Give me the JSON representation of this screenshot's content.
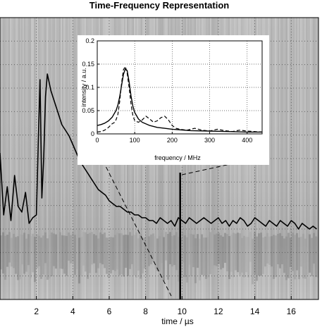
{
  "chart_data": [
    {
      "type": "heatmap",
      "title": "Time-Frequency Representation",
      "xlabel": "time / µs",
      "ylabel": "",
      "xlim": [
        0,
        17.5
      ],
      "x_ticks": [
        "2",
        "4",
        "6",
        "8",
        "10",
        "12",
        "14",
        "16"
      ],
      "grid": true,
      "background": "grayscale time-frequency intensity map",
      "series": [
        {
          "type": "line",
          "x": [
            0.0,
            0.2,
            0.4,
            0.6,
            0.8,
            1.0,
            1.2,
            1.4,
            1.6,
            1.8,
            2.0,
            2.1,
            2.2,
            2.3,
            2.4,
            2.5,
            2.6,
            2.8,
            3.0,
            3.2,
            3.4,
            3.6,
            3.8,
            4.0,
            4.2,
            4.4,
            4.6,
            4.8,
            5.0,
            5.2,
            5.4,
            5.6,
            5.8,
            6.0,
            6.2,
            6.4,
            6.6,
            6.8,
            7.0,
            7.2,
            7.4,
            7.6,
            7.8,
            8.0,
            8.2,
            8.4,
            8.6,
            8.8,
            9.0,
            9.2,
            9.4,
            9.6,
            9.8,
            10.0,
            10.2,
            10.4,
            10.6,
            10.8,
            11.0,
            11.2,
            11.4,
            11.6,
            11.8,
            12.0,
            12.2,
            12.4,
            12.6,
            12.8,
            13.0,
            13.2,
            13.4,
            13.6,
            13.8,
            14.0,
            14.2,
            14.4,
            14.6,
            14.8,
            15.0,
            15.2,
            15.4,
            15.6,
            15.8,
            16.0,
            16.2,
            16.4,
            16.6,
            16.8,
            17.0,
            17.2,
            17.4
          ],
          "y": [
            0.52,
            0.3,
            0.4,
            0.28,
            0.44,
            0.33,
            0.31,
            0.38,
            0.27,
            0.29,
            0.3,
            0.55,
            0.78,
            0.36,
            0.5,
            0.72,
            0.8,
            0.74,
            0.7,
            0.66,
            0.62,
            0.6,
            0.58,
            0.55,
            0.52,
            0.49,
            0.47,
            0.45,
            0.43,
            0.41,
            0.39,
            0.38,
            0.37,
            0.35,
            0.34,
            0.33,
            0.33,
            0.32,
            0.31,
            0.31,
            0.3,
            0.3,
            0.29,
            0.29,
            0.28,
            0.28,
            0.27,
            0.29,
            0.28,
            0.27,
            0.28,
            0.26,
            0.29,
            0.28,
            0.27,
            0.29,
            0.28,
            0.27,
            0.28,
            0.29,
            0.28,
            0.27,
            0.28,
            0.29,
            0.27,
            0.28,
            0.26,
            0.28,
            0.27,
            0.29,
            0.28,
            0.26,
            0.27,
            0.29,
            0.28,
            0.27,
            0.26,
            0.28,
            0.27,
            0.26,
            0.28,
            0.27,
            0.26,
            0.28,
            0.27,
            0.25,
            0.27,
            0.26,
            0.25,
            0.26,
            0.25
          ]
        }
      ],
      "annotations": [
        {
          "type": "vertical-marker",
          "x": 9.9
        }
      ]
    },
    {
      "type": "line",
      "xlabel": "frequency / MHz",
      "ylabel": "intensity / a.u.",
      "xlim": [
        0,
        440
      ],
      "ylim": [
        0,
        0.2
      ],
      "x_ticks": [
        "0",
        "100",
        "200",
        "300",
        "400"
      ],
      "y_ticks": [
        "0",
        "0.05",
        "0.1",
        "0.15",
        "0.2"
      ],
      "grid": true,
      "series": [
        {
          "style": "solid",
          "x": [
            0,
            10,
            20,
            30,
            40,
            50,
            55,
            60,
            65,
            70,
            75,
            80,
            85,
            90,
            95,
            100,
            110,
            120,
            140,
            160,
            180,
            200,
            250,
            300,
            350,
            400,
            440
          ],
          "y": [
            0.018,
            0.02,
            0.023,
            0.028,
            0.036,
            0.05,
            0.062,
            0.08,
            0.105,
            0.128,
            0.14,
            0.136,
            0.112,
            0.082,
            0.06,
            0.046,
            0.032,
            0.025,
            0.018,
            0.014,
            0.012,
            0.01,
            0.007,
            0.006,
            0.005,
            0.004,
            0.004
          ]
        },
        {
          "style": "dashed",
          "x": [
            0,
            10,
            20,
            30,
            40,
            45,
            50,
            55,
            60,
            65,
            70,
            75,
            80,
            85,
            90,
            95,
            100,
            110,
            120,
            130,
            140,
            150,
            160,
            170,
            180,
            190,
            200,
            210,
            220,
            240,
            260,
            280,
            300,
            320,
            340,
            360,
            380,
            400,
            420,
            440
          ],
          "y": [
            0.004,
            0.005,
            0.008,
            0.014,
            0.022,
            0.024,
            0.03,
            0.042,
            0.07,
            0.11,
            0.138,
            0.145,
            0.13,
            0.1,
            0.065,
            0.04,
            0.028,
            0.025,
            0.03,
            0.038,
            0.032,
            0.025,
            0.028,
            0.035,
            0.038,
            0.03,
            0.018,
            0.012,
            0.01,
            0.008,
            0.012,
            0.008,
            0.006,
            0.01,
            0.007,
            0.005,
            0.008,
            0.006,
            0.005,
            0.004
          ]
        }
      ]
    }
  ]
}
